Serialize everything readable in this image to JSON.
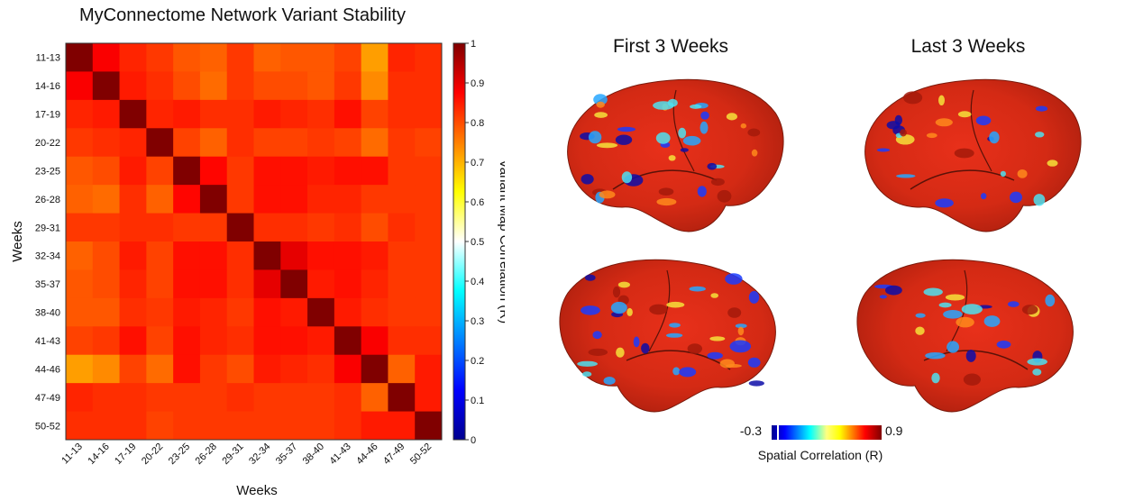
{
  "heatmap": {
    "title": "MyConnectome Network Variant Stability",
    "xlabel": "Weeks",
    "ylabel": "Weeks",
    "colorbar_label": "Variant Map Correlation (R)",
    "colorbar_ticks": [
      "0",
      "0.1",
      "0.2",
      "0.3",
      "0.4",
      "0.5",
      "0.6",
      "0.7",
      "0.8",
      "0.9",
      "1"
    ]
  },
  "chart_data": {
    "type": "heatmap",
    "title": "MyConnectome Network Variant Stability",
    "xlabel": "Weeks",
    "ylabel": "Weeks",
    "x_categories": [
      "11-13",
      "14-16",
      "17-19",
      "20-22",
      "23-25",
      "26-28",
      "29-31",
      "32-34",
      "35-37",
      "38-40",
      "41-43",
      "44-46",
      "47-49",
      "50-52"
    ],
    "y_categories": [
      "11-13",
      "14-16",
      "17-19",
      "20-22",
      "23-25",
      "26-28",
      "29-31",
      "32-34",
      "35-37",
      "38-40",
      "41-43",
      "44-46",
      "47-49",
      "50-52"
    ],
    "colorbar_label": "Variant Map Correlation (R)",
    "zlim": [
      0,
      1
    ],
    "colormap": "jet",
    "values": [
      [
        1.0,
        0.88,
        0.84,
        0.82,
        0.79,
        0.78,
        0.82,
        0.78,
        0.79,
        0.79,
        0.81,
        0.72,
        0.84,
        0.83
      ],
      [
        0.88,
        1.0,
        0.85,
        0.83,
        0.8,
        0.77,
        0.82,
        0.8,
        0.8,
        0.79,
        0.82,
        0.74,
        0.83,
        0.83
      ],
      [
        0.84,
        0.85,
        1.0,
        0.84,
        0.85,
        0.83,
        0.83,
        0.85,
        0.84,
        0.83,
        0.86,
        0.81,
        0.83,
        0.83
      ],
      [
        0.82,
        0.83,
        0.84,
        1.0,
        0.81,
        0.78,
        0.83,
        0.81,
        0.81,
        0.82,
        0.81,
        0.77,
        0.82,
        0.81
      ],
      [
        0.79,
        0.8,
        0.85,
        0.81,
        1.0,
        0.87,
        0.82,
        0.86,
        0.86,
        0.85,
        0.86,
        0.86,
        0.82,
        0.82
      ],
      [
        0.78,
        0.77,
        0.83,
        0.78,
        0.87,
        1.0,
        0.82,
        0.86,
        0.86,
        0.84,
        0.84,
        0.82,
        0.82,
        0.82
      ],
      [
        0.82,
        0.82,
        0.83,
        0.83,
        0.82,
        0.82,
        1.0,
        0.83,
        0.83,
        0.82,
        0.83,
        0.8,
        0.83,
        0.82
      ],
      [
        0.78,
        0.8,
        0.85,
        0.81,
        0.86,
        0.86,
        0.83,
        1.0,
        0.9,
        0.86,
        0.86,
        0.85,
        0.82,
        0.82
      ],
      [
        0.79,
        0.8,
        0.84,
        0.81,
        0.86,
        0.86,
        0.83,
        0.9,
        1.0,
        0.85,
        0.86,
        0.84,
        0.82,
        0.82
      ],
      [
        0.79,
        0.79,
        0.83,
        0.82,
        0.85,
        0.84,
        0.82,
        0.86,
        0.85,
        1.0,
        0.85,
        0.83,
        0.82,
        0.82
      ],
      [
        0.81,
        0.82,
        0.86,
        0.81,
        0.86,
        0.84,
        0.83,
        0.86,
        0.86,
        0.85,
        1.0,
        0.88,
        0.83,
        0.83
      ],
      [
        0.72,
        0.74,
        0.81,
        0.77,
        0.86,
        0.82,
        0.8,
        0.85,
        0.84,
        0.83,
        0.88,
        1.0,
        0.78,
        0.85
      ],
      [
        0.84,
        0.83,
        0.83,
        0.82,
        0.82,
        0.82,
        0.83,
        0.82,
        0.82,
        0.82,
        0.83,
        0.78,
        1.0,
        0.85
      ],
      [
        0.83,
        0.83,
        0.83,
        0.81,
        0.82,
        0.82,
        0.82,
        0.82,
        0.82,
        0.82,
        0.83,
        0.85,
        0.85,
        1.0
      ]
    ]
  },
  "brains": {
    "column_titles": [
      "First 3 Weeks",
      "Last 3 Weeks"
    ],
    "colorbar_min": "-0.3",
    "colorbar_max": "0.9",
    "colorbar_label": "Spatial Correlation (R)"
  }
}
